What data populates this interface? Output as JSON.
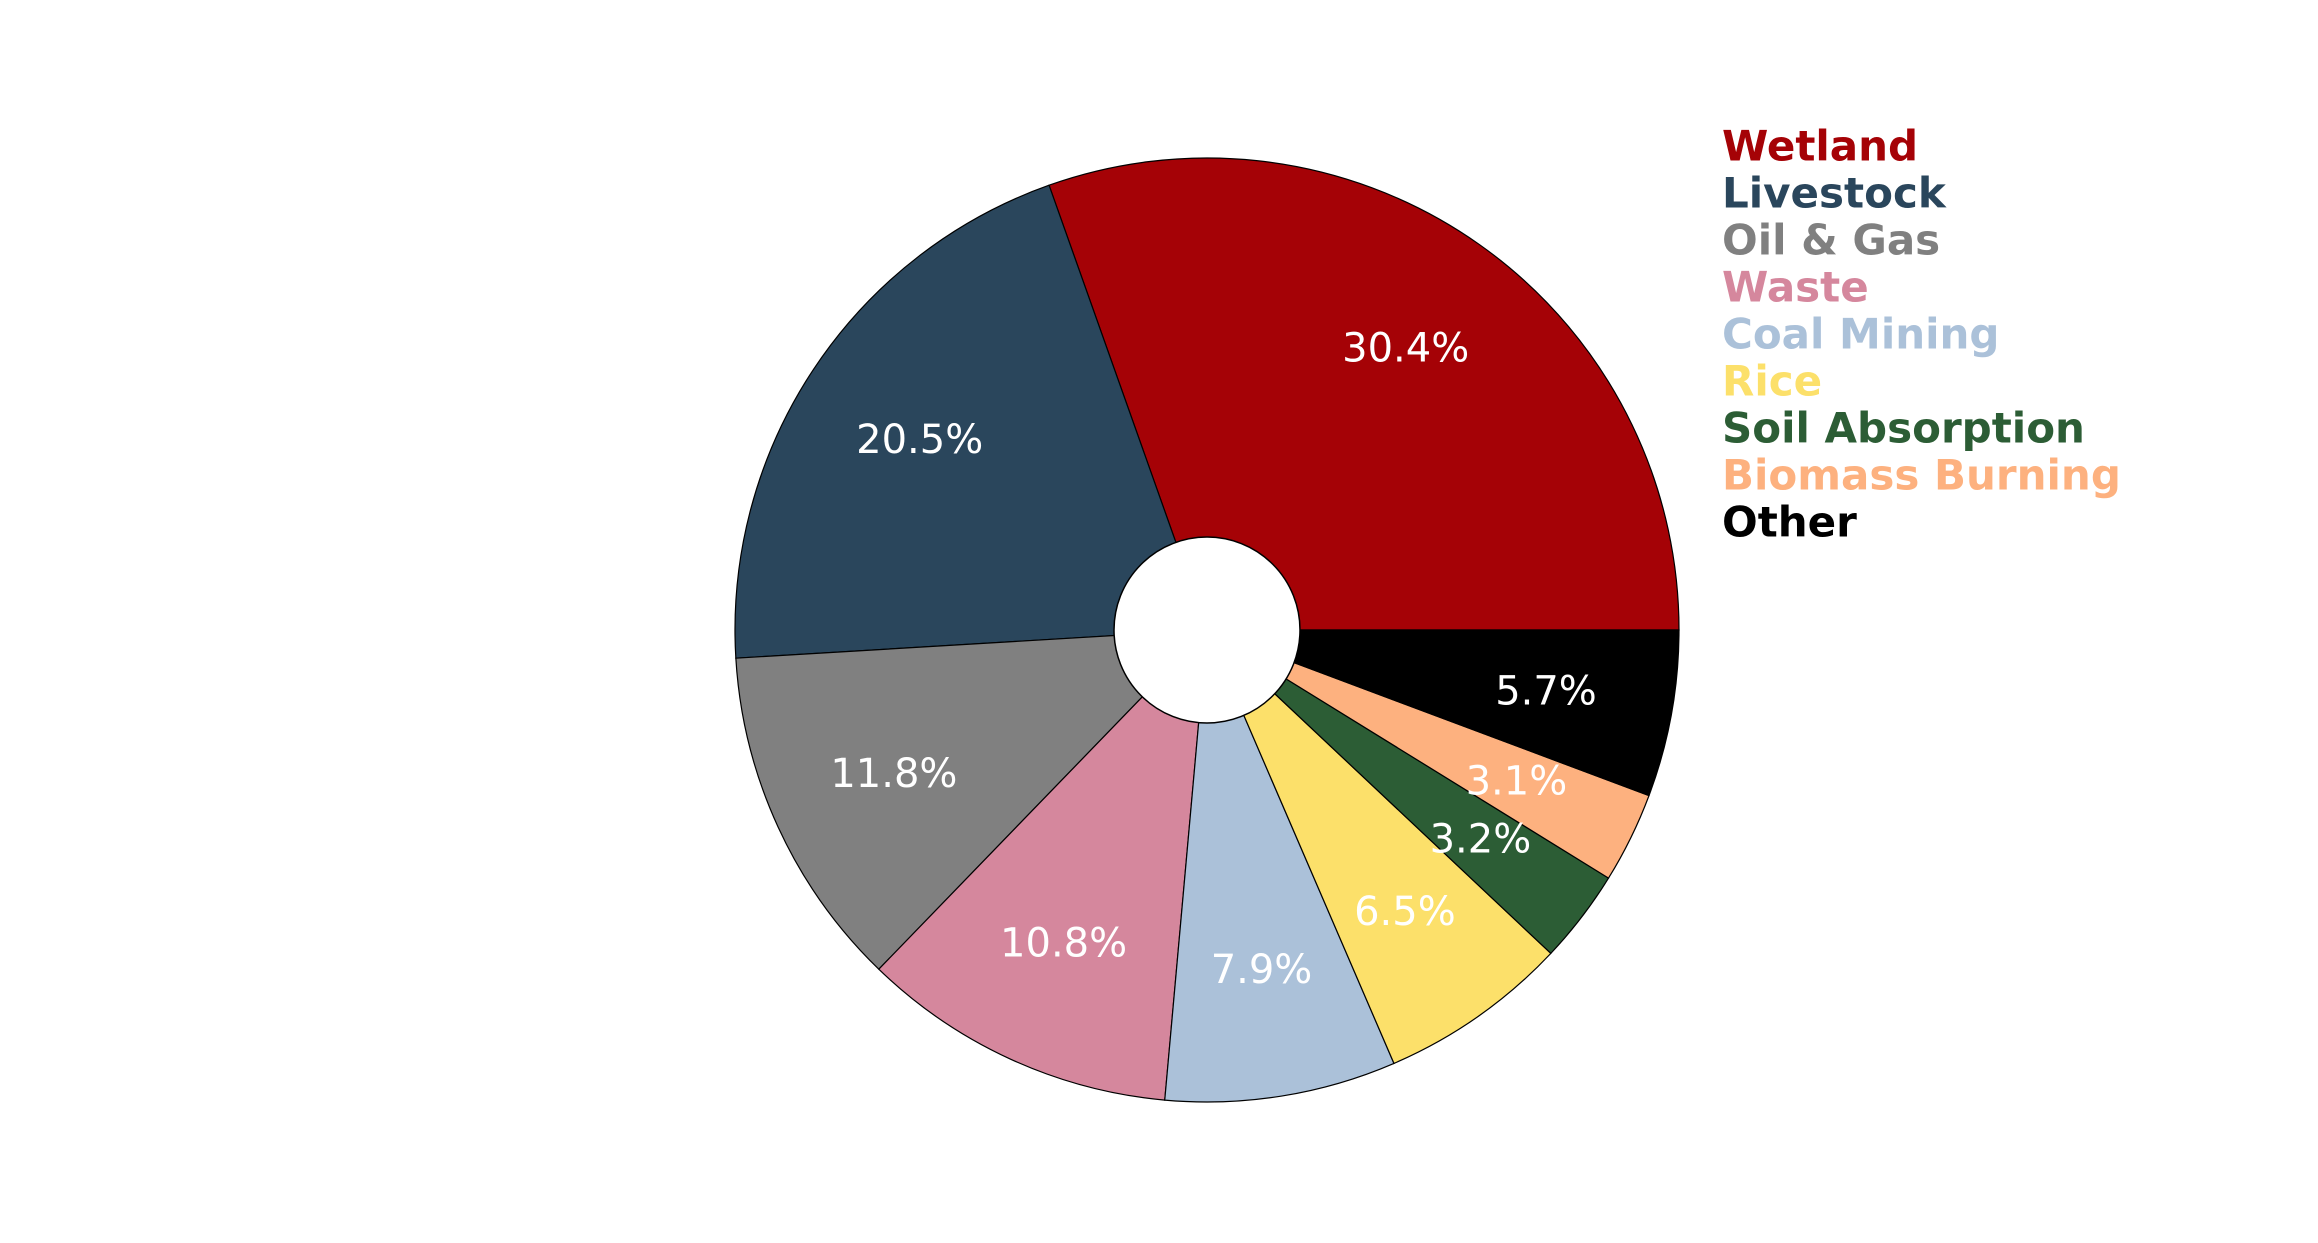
{
  "chart_data": {
    "type": "pie",
    "donut": true,
    "title": "",
    "start_angle_deg": 0,
    "direction": "counterclockwise",
    "legend_position": "top-right",
    "categories": [
      "Wetland",
      "Livestock",
      "Oil & Gas",
      "Waste",
      "Coal Mining",
      "Rice",
      "Soil Absorption",
      "Biomass Burning",
      "Other"
    ],
    "values": [
      30.4,
      20.5,
      11.8,
      10.8,
      7.9,
      6.5,
      3.2,
      3.1,
      5.7
    ],
    "labels": [
      "30.4%",
      "20.5%",
      "11.8%",
      "10.8%",
      "7.9%",
      "6.5%",
      "3.2%",
      "3.1%",
      "5.7%"
    ],
    "colors": [
      "#a50206",
      "#2a465c",
      "#808080",
      "#d5879d",
      "#abc1d9",
      "#fce06a",
      "#2c5d35",
      "#fdb17f",
      "#000000"
    ]
  }
}
